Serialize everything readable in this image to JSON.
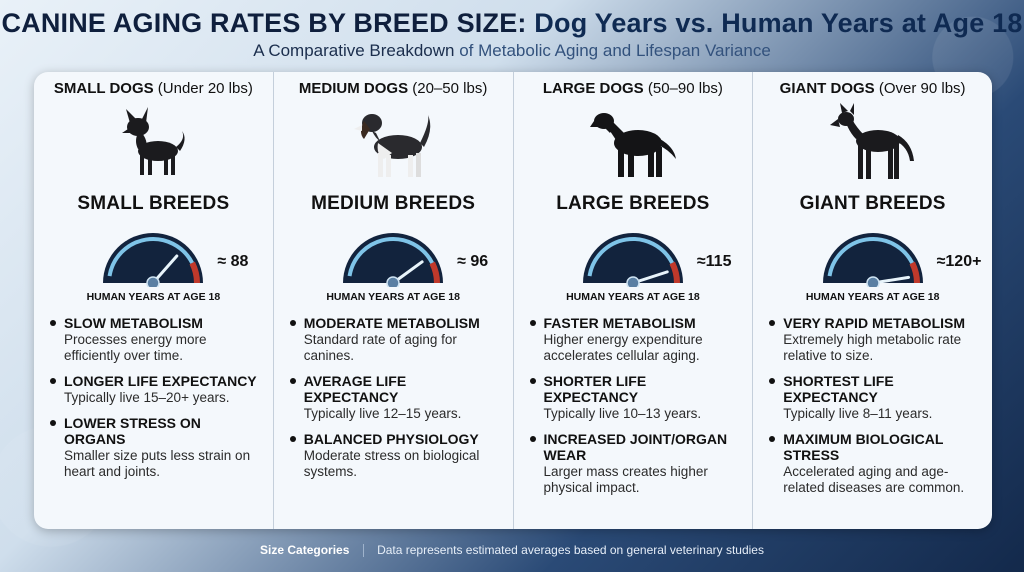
{
  "header": {
    "title_part1": "CANINE AGING RATES BY BREED SIZE:",
    "title_part2": "Dog Years vs. Human Years at Age 18",
    "subtitle_part1": "A Comparative Breakdown",
    "subtitle_part2": "of Metabolic Aging and Lifespan Variance"
  },
  "columns": [
    {
      "head_bold": "SMALL DOGS",
      "head_range": "(Under 20 lbs)",
      "breed": "SMALL BREEDS",
      "gauge_value": "≈ 88",
      "gauge_caption": "HUMAN YEARS AT AGE 18",
      "gauge_level": 0.73,
      "bullets": [
        {
          "title": "SLOW METABOLISM",
          "text": "Processes energy more efficiently over time."
        },
        {
          "title": "LONGER LIFE EXPECTANCY",
          "text": "Typically live 15–20+ years."
        },
        {
          "title": "LOWER STRESS ON ORGANS",
          "text": "Smaller size puts less strain on heart and joints."
        }
      ]
    },
    {
      "head_bold": "MEDIUM DOGS",
      "head_range": "(20–50 lbs)",
      "breed": "MEDIUM BREEDS",
      "gauge_value": "≈ 96",
      "gauge_caption": "HUMAN YEARS AT AGE 18",
      "gauge_level": 0.8,
      "bullets": [
        {
          "title": "MODERATE METABOLISM",
          "text": "Standard rate of aging for canines."
        },
        {
          "title": "AVERAGE LIFE EXPECTANCY",
          "text": "Typically live 12–15 years."
        },
        {
          "title": "BALANCED PHYSIOLOGY",
          "text": "Moderate stress on biological systems."
        }
      ]
    },
    {
      "head_bold": "LARGE DOGS",
      "head_range": "(50–90 lbs)",
      "breed": "LARGE BREEDS",
      "gauge_value": "≈115",
      "gauge_caption": "HUMAN YEARS AT AGE 18",
      "gauge_level": 0.9,
      "bullets": [
        {
          "title": "FASTER METABOLISM",
          "text": "Higher energy expenditure accelerates cellular aging."
        },
        {
          "title": "SHORTER LIFE EXPECTANCY",
          "text": "Typically live 10–13 years."
        },
        {
          "title": "INCREASED JOINT/ORGAN WEAR",
          "text": "Larger mass creates higher physical impact."
        }
      ]
    },
    {
      "head_bold": "GIANT DOGS",
      "head_range": "(Over 90 lbs)",
      "breed": "GIANT BREEDS",
      "gauge_value": "≈120+",
      "gauge_caption": "HUMAN YEARS AT AGE 18",
      "gauge_level": 0.95,
      "bullets": [
        {
          "title": "VERY RAPID METABOLISM",
          "text": "Extremely high metabolic rate relative to size."
        },
        {
          "title": "SHORTEST LIFE EXPECTANCY",
          "text": "Typically live 8–11 years."
        },
        {
          "title": "MAXIMUM BIOLOGICAL STRESS",
          "text": "Accelerated aging and age-related diseases are common."
        }
      ]
    }
  ],
  "footer": {
    "label": "Size Categories",
    "note": "Data represents estimated averages based on general veterinary studies"
  },
  "colors": {
    "gauge_dark": "#12233d",
    "gauge_arc": "#7fc4e8",
    "gauge_red": "#c0392b",
    "dog": "#1b1b1e"
  },
  "icons": [
    "chihuahua-icon",
    "beagle-icon",
    "labrador-icon",
    "great-dane-icon",
    "speedometer-icon"
  ]
}
